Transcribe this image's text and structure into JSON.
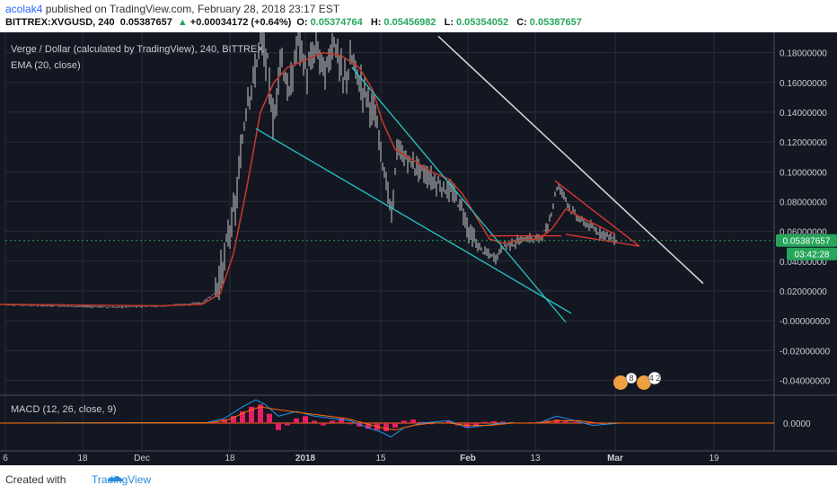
{
  "header": {
    "user": "acolak4",
    "published_text": "published on TradingView.com, February 28, 2018 23:17 EST",
    "symbol": "BITTREX:XVGUSD, 240",
    "last": "0.05387657",
    "change": "+0.00034172 (+0.64%)",
    "open_label": "O:",
    "open": "0.05374764",
    "high_label": "H:",
    "high": "0.05456982",
    "low_label": "L:",
    "low": "0.05354052",
    "close_label": "C:",
    "close": "0.05387657",
    "up_arrow": "▲"
  },
  "legend": {
    "title": "Verge / Dollar (calculated by TradingView), 240, BITTREX",
    "ema": "EMA (20, close)",
    "macd": "MACD (12, 26, close, 9)"
  },
  "price_scale": {
    "ticks": [
      "0.18000000",
      "0.16000000",
      "0.14000000",
      "0.12000000",
      "0.10000000",
      "0.08000000",
      "0.06000000",
      "0.04000000",
      "0.02000000",
      "-0.00000000",
      "-0.02000000",
      "-0.04000000"
    ],
    "tick_values": [
      0.18,
      0.16,
      0.14,
      0.12,
      0.1,
      0.08,
      0.06,
      0.04,
      0.02,
      0.0,
      -0.02,
      -0.04
    ],
    "last_price_label": "0.05387657",
    "countdown_label": "03:42:28"
  },
  "macd_scale": {
    "ticks": [
      "0.0000"
    ]
  },
  "time_axis": {
    "labels": [
      "6",
      "18",
      "Dec",
      "18",
      "2018",
      "15",
      "Feb",
      "13",
      "Mar",
      "19"
    ],
    "bold": [
      false,
      false,
      false,
      false,
      true,
      false,
      true,
      false,
      true,
      false
    ]
  },
  "event_badges": [
    "8",
    "4 2"
  ],
  "footer": {
    "created_with": "Created with",
    "brand": "TradingView"
  },
  "colors": {
    "background": "#131722",
    "grid": "#2a2e39",
    "candles": "#c8c8c8",
    "ema": "#c0392b",
    "trend_cyan": "#26c6c6",
    "trend_white": "#d0d0d0",
    "wedge_red": "#e53935",
    "macd_hist": "#e91e63",
    "macd_line": "#2196f3",
    "signal_line": "#ff6d00",
    "last_price": "#26a65b"
  },
  "chart_data": {
    "type": "candlestick",
    "title": "Verge / Dollar (calculated by TradingView), 240, BITTREX",
    "ylim": [
      -0.05,
      0.19
    ],
    "price_path": [
      [
        0,
        0.011
      ],
      [
        60,
        0.01
      ],
      [
        130,
        0.009
      ],
      [
        180,
        0.01
      ],
      [
        225,
        0.012
      ],
      [
        238,
        0.018
      ],
      [
        248,
        0.035
      ],
      [
        255,
        0.06
      ],
      [
        262,
        0.075
      ],
      [
        268,
        0.11
      ],
      [
        275,
        0.15
      ],
      [
        282,
        0.16
      ],
      [
        290,
        0.19
      ],
      [
        298,
        0.17
      ],
      [
        305,
        0.13
      ],
      [
        312,
        0.18
      ],
      [
        322,
        0.15
      ],
      [
        332,
        0.19
      ],
      [
        342,
        0.165
      ],
      [
        352,
        0.185
      ],
      [
        362,
        0.165
      ],
      [
        372,
        0.19
      ],
      [
        382,
        0.16
      ],
      [
        392,
        0.175
      ],
      [
        400,
        0.16
      ],
      [
        410,
        0.15
      ],
      [
        420,
        0.13
      ],
      [
        428,
        0.1
      ],
      [
        436,
        0.07
      ],
      [
        442,
        0.115
      ],
      [
        450,
        0.11
      ],
      [
        460,
        0.105
      ],
      [
        470,
        0.1
      ],
      [
        480,
        0.095
      ],
      [
        492,
        0.09
      ],
      [
        505,
        0.085
      ],
      [
        515,
        0.075
      ],
      [
        522,
        0.06
      ],
      [
        532,
        0.05
      ],
      [
        542,
        0.045
      ],
      [
        552,
        0.042
      ],
      [
        560,
        0.05
      ],
      [
        572,
        0.052
      ],
      [
        585,
        0.055
      ],
      [
        600,
        0.055
      ],
      [
        610,
        0.062
      ],
      [
        620,
        0.09
      ],
      [
        628,
        0.085
      ],
      [
        635,
        0.075
      ],
      [
        645,
        0.068
      ],
      [
        655,
        0.064
      ],
      [
        665,
        0.06
      ],
      [
        675,
        0.058
      ],
      [
        685,
        0.054
      ]
    ],
    "ema_path": [
      [
        0,
        0.011
      ],
      [
        180,
        0.01
      ],
      [
        225,
        0.011
      ],
      [
        245,
        0.018
      ],
      [
        260,
        0.045
      ],
      [
        275,
        0.09
      ],
      [
        290,
        0.14
      ],
      [
        305,
        0.16
      ],
      [
        320,
        0.17
      ],
      [
        340,
        0.175
      ],
      [
        360,
        0.18
      ],
      [
        380,
        0.178
      ],
      [
        400,
        0.17
      ],
      [
        415,
        0.155
      ],
      [
        425,
        0.135
      ],
      [
        440,
        0.115
      ],
      [
        460,
        0.108
      ],
      [
        480,
        0.1
      ],
      [
        500,
        0.095
      ],
      [
        515,
        0.085
      ],
      [
        530,
        0.07
      ],
      [
        545,
        0.055
      ],
      [
        560,
        0.052
      ],
      [
        580,
        0.054
      ],
      [
        600,
        0.055
      ],
      [
        615,
        0.062
      ],
      [
        630,
        0.075
      ],
      [
        645,
        0.07
      ],
      [
        665,
        0.064
      ],
      [
        685,
        0.058
      ]
    ],
    "trendlines": [
      {
        "color": "trend_cyan",
        "points": [
          [
            392,
            0.17
          ],
          [
            630,
            -0.001
          ]
        ]
      },
      {
        "color": "trend_cyan",
        "points": [
          [
            285,
            0.129
          ],
          [
            636,
            0.005
          ]
        ]
      },
      {
        "color": "trend_white",
        "points": [
          [
            488,
            0.191
          ],
          [
            783,
            0.025
          ]
        ]
      },
      {
        "color": "wedge_red",
        "points": [
          [
            618,
            0.094
          ],
          [
            712,
            0.05
          ]
        ]
      },
      {
        "color": "wedge_red",
        "points": [
          [
            630,
            0.058
          ],
          [
            712,
            0.05
          ]
        ]
      },
      {
        "color": "wedge_red",
        "points": [
          [
            545,
            0.057
          ],
          [
            625,
            0.057
          ]
        ]
      }
    ],
    "macd": {
      "ylim": [
        -0.012,
        0.012
      ],
      "hist": [
        [
          240,
          0.0004
        ],
        [
          250,
          0.0015
        ],
        [
          260,
          0.003
        ],
        [
          270,
          0.005
        ],
        [
          280,
          0.007
        ],
        [
          290,
          0.008
        ],
        [
          300,
          0.004
        ],
        [
          310,
          -0.003
        ],
        [
          320,
          -0.001
        ],
        [
          330,
          0.002
        ],
        [
          340,
          0.003
        ],
        [
          350,
          0.001
        ],
        [
          360,
          -0.001
        ],
        [
          370,
          0.001
        ],
        [
          380,
          0.002
        ],
        [
          390,
          -0.0005
        ],
        [
          400,
          -0.0015
        ],
        [
          410,
          -0.0025
        ],
        [
          420,
          -0.003
        ],
        [
          430,
          -0.0035
        ],
        [
          440,
          -0.002
        ],
        [
          450,
          0.001
        ],
        [
          460,
          0.0015
        ],
        [
          470,
          0.0005
        ],
        [
          480,
          -0.0005
        ],
        [
          490,
          0.0002
        ],
        [
          500,
          0.0008
        ],
        [
          510,
          -0.001
        ],
        [
          520,
          -0.002
        ],
        [
          530,
          -0.0015
        ],
        [
          540,
          0.0005
        ],
        [
          550,
          0.0008
        ],
        [
          560,
          0.0006
        ],
        [
          570,
          0.0004
        ],
        [
          580,
          0.0002
        ],
        [
          590,
          0.0003
        ],
        [
          600,
          0.0005
        ],
        [
          610,
          0.001
        ],
        [
          620,
          0.0015
        ],
        [
          630,
          0.001
        ],
        [
          640,
          0.0005
        ],
        [
          650,
          0.0002
        ],
        [
          660,
          0.0001
        ],
        [
          670,
          0.0
        ],
        [
          680,
          -0.0002
        ]
      ],
      "macd_line": [
        [
          0,
          0
        ],
        [
          230,
          0.0002
        ],
        [
          250,
          0.002
        ],
        [
          270,
          0.007
        ],
        [
          285,
          0.01
        ],
        [
          295,
          0.008
        ],
        [
          310,
          0.003
        ],
        [
          330,
          0.005
        ],
        [
          350,
          0.003
        ],
        [
          370,
          0.002
        ],
        [
          390,
          0.001
        ],
        [
          410,
          -0.002
        ],
        [
          425,
          -0.004
        ],
        [
          435,
          -0.006
        ],
        [
          450,
          -0.002
        ],
        [
          470,
          0.0
        ],
        [
          500,
          0.001
        ],
        [
          520,
          -0.002
        ],
        [
          540,
          -0.001
        ],
        [
          560,
          0.0
        ],
        [
          600,
          0.0
        ],
        [
          620,
          0.003
        ],
        [
          640,
          0.001
        ],
        [
          660,
          -0.001
        ],
        [
          690,
          0.0
        ]
      ],
      "signal_line": [
        [
          0,
          0
        ],
        [
          235,
          0.0002
        ],
        [
          255,
          0.0015
        ],
        [
          275,
          0.005
        ],
        [
          290,
          0.007
        ],
        [
          305,
          0.006
        ],
        [
          325,
          0.005
        ],
        [
          345,
          0.004
        ],
        [
          365,
          0.003
        ],
        [
          385,
          0.002
        ],
        [
          405,
          0.0
        ],
        [
          425,
          -0.002
        ],
        [
          440,
          -0.003
        ],
        [
          460,
          -0.001
        ],
        [
          480,
          0.0
        ],
        [
          500,
          0.0
        ],
        [
          520,
          -0.001
        ],
        [
          545,
          -0.001
        ],
        [
          570,
          0.0
        ],
        [
          600,
          0.0
        ],
        [
          620,
          0.001
        ],
        [
          645,
          0.001
        ],
        [
          665,
          0.0
        ],
        [
          690,
          0.0
        ]
      ]
    }
  }
}
